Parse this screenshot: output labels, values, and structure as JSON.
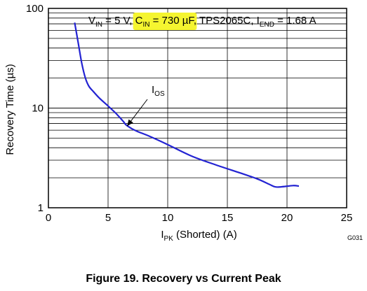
{
  "chart_data": {
    "type": "line",
    "title": {
      "v_sym": "V",
      "v_sub": "IN",
      "v_val": " = 5 V, ",
      "c_sym": "C",
      "c_sub": "IN",
      "c_val": " = 730 µF",
      "mid": ",  TPS2065C, ",
      "i_sym": "I",
      "i_sub": "END",
      "i_val": " = 1.68 A"
    },
    "highlight_color": "#f5f530",
    "xlabel": {
      "sym": "I",
      "sub": "PK",
      "rest": " (Shorted) (A)"
    },
    "ylabel": "Recovery Time (µs)",
    "x_scale": "linear",
    "y_scale": "log",
    "xlim": [
      0,
      25
    ],
    "ylim": [
      1,
      100
    ],
    "x_ticks": [
      0,
      5,
      10,
      15,
      20,
      25
    ],
    "x_tick_labels": [
      "0",
      "5",
      "10",
      "15",
      "20",
      "25"
    ],
    "y_tick_labels": [
      "1",
      "10",
      "100"
    ],
    "grid": true,
    "series": [
      {
        "color": "#2323d2",
        "x": [
          2.2,
          2.5,
          2.8,
          3.1,
          3.4,
          3.8,
          4.3,
          5.0,
          5.6,
          6.0,
          6.3,
          6.5,
          7.0,
          7.5,
          8.5,
          10.0,
          12.0,
          14.0,
          16.0,
          17.5,
          18.5,
          19.0,
          19.5,
          20.5,
          21.0
        ],
        "y": [
          72,
          45,
          28,
          20,
          16.5,
          14.5,
          12.5,
          10.5,
          9.0,
          8.0,
          7.3,
          6.8,
          6.2,
          5.8,
          5.2,
          4.3,
          3.3,
          2.7,
          2.25,
          1.95,
          1.72,
          1.62,
          1.62,
          1.67,
          1.65
        ]
      }
    ],
    "annotation": {
      "sym": "I",
      "sub": "OS",
      "x": 6.6,
      "y": 6.6
    },
    "figure_code": "G031"
  },
  "caption": "Figure 19. Recovery vs Current Peak"
}
